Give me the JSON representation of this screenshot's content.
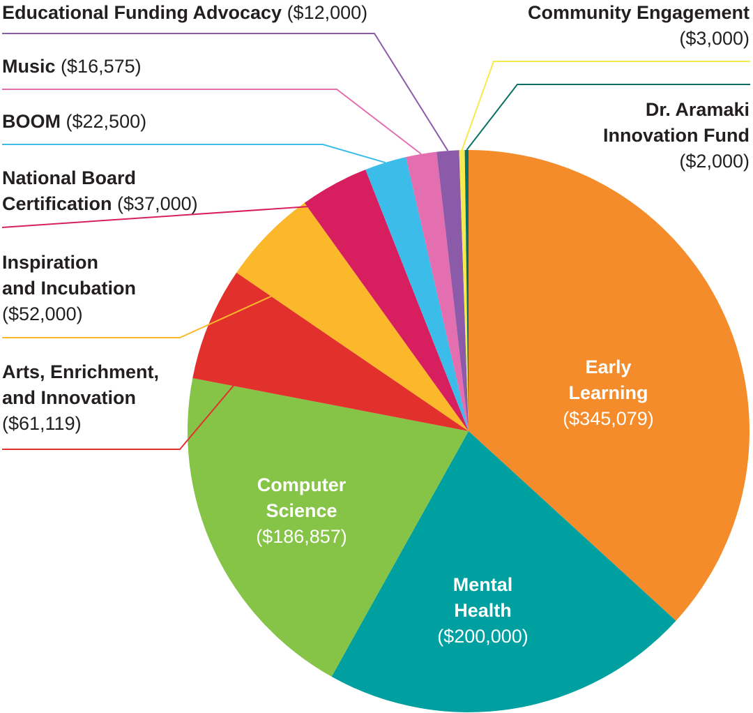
{
  "chart_data": {
    "type": "pie",
    "title": "",
    "slices": [
      {
        "id": "early-learning",
        "name": "Early Learning",
        "line1": "Early",
        "line2": "Learning",
        "amount": "($345,079)",
        "value": 345079,
        "color": "#f48c2c"
      },
      {
        "id": "mental-health",
        "name": "Mental Health",
        "line1": "Mental",
        "line2": "Health",
        "amount": "($200,000)",
        "value": 200000,
        "color": "#00a0a0"
      },
      {
        "id": "computer-science",
        "name": "Computer Science",
        "line1": "Computer",
        "line2": "Science",
        "amount": "($186,857)",
        "value": 186857,
        "color": "#86c447"
      },
      {
        "id": "arts",
        "name": "Arts, Enrichment, and Innovation",
        "line1": "Arts, Enrichment,",
        "line2": "and Innovation",
        "amount": "($61,119)",
        "value": 61119,
        "color": "#e2312d"
      },
      {
        "id": "inspiration",
        "name": "Inspiration and Incubation",
        "line1": "Inspiration",
        "line2": "and Incubation",
        "amount": "($52,000)",
        "value": 52000,
        "color": "#fbb82a"
      },
      {
        "id": "nbc",
        "name": "National Board Certification",
        "line1": "National Board",
        "line2": "Certification",
        "amount": "($37,000)",
        "value": 37000,
        "color": "#d71f5f"
      },
      {
        "id": "boom",
        "name": "BOOM",
        "line1": "BOOM",
        "amount": "($22,500)",
        "value": 22500,
        "color": "#3cbde9"
      },
      {
        "id": "music",
        "name": "Music",
        "line1": "Music",
        "amount": "($16,575)",
        "value": 16575,
        "color": "#e36fb0"
      },
      {
        "id": "efa",
        "name": "Educational Funding Advocacy",
        "line1": "Educational Funding Advocacy",
        "amount": "($12,000)",
        "value": 12000,
        "color": "#8b5ba9"
      },
      {
        "id": "community",
        "name": "Community Engagement",
        "line1": "Community Engagement",
        "amount": "($3,000)",
        "value": 3000,
        "color": "#f6ea4f"
      },
      {
        "id": "aramaki",
        "name": "Dr. Aramaki Innovation Fund",
        "line1": "Dr. Aramaki",
        "line2": "Innovation Fund",
        "amount": "($2,000)",
        "value": 2000,
        "color": "#0a7066"
      }
    ],
    "start": "top, clockwise",
    "legend": "none (callout labels)"
  }
}
